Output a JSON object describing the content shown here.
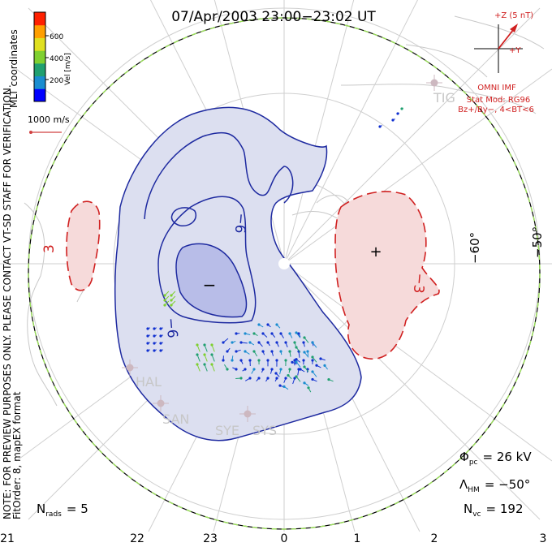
{
  "title": "07/Apr/2003 23:00−23:02 UT",
  "colorbar": {
    "label": "Vel [m/s]",
    "ticks": [
      "600",
      "400",
      "200"
    ],
    "colors": [
      "#0000ff",
      "#1a8dd0",
      "#20a070",
      "#7fd030",
      "#e0e020",
      "#ff9f00",
      "#ff2000"
    ]
  },
  "coordinates_label": "MLT coordinates",
  "vector_scale": {
    "label": "1000 m/s",
    "color": "#d04040"
  },
  "imf": {
    "bz_label": "+Z (5 nT)",
    "by_label": "+Y",
    "source": "OMNI IMF",
    "model": "Stat Mod: RG96",
    "condition": "Bz+/By−, 4<BT<6",
    "color": "#d02020"
  },
  "latitude_labels": [
    "−60°",
    "−50°"
  ],
  "mlt_labels": [
    "21",
    "22",
    "23",
    "0",
    "1",
    "2",
    "3"
  ],
  "contour_labels": [
    "−6",
    "−6",
    "3",
    "−3"
  ],
  "polarity_markers": {
    "negative": "−",
    "positive": "+"
  },
  "station_labels": [
    "HAL",
    "SAN",
    "SYE",
    "SYS",
    "TIG"
  ],
  "side_note": "NOTE: FOR PREVIEW PURPOSES ONLY. PLEASE CONTACT VT-SD STAFF FOR VERIFICATION.",
  "fit_order": "FitOrder: 8, mapEX format",
  "stats": {
    "phi_pc": "= 26 kV",
    "lambda_hm": "= −50°",
    "n_vc": "= 192",
    "n_rads": "= 5"
  },
  "colors": {
    "negative_fill": "#dcdff0",
    "negative_core": "#b8bde8",
    "positive_fill": "#f6dada",
    "negative_line": "#1e2aa0",
    "positive_line": "#d02020",
    "boundary": "#9be05a"
  }
}
